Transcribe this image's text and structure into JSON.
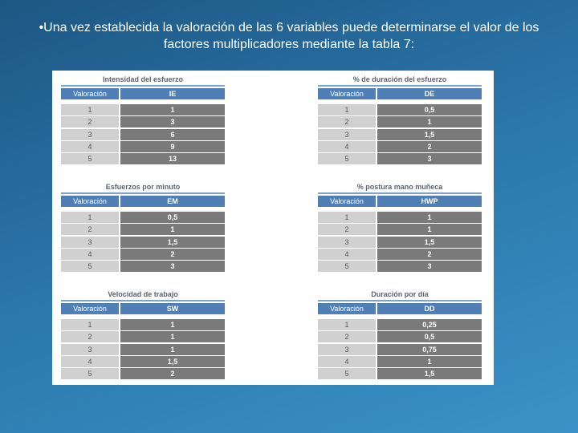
{
  "heading": "•Una vez establecida la valoración de las 6 variables puede determinarse el valor de los factores multiplicadores mediante la tabla 7:",
  "tables": [
    {
      "title": "Intensidad del esfuerzo",
      "headers": [
        "Valoración",
        "IE"
      ],
      "rows": [
        [
          "1",
          "1"
        ],
        [
          "2",
          "3"
        ],
        [
          "3",
          "6"
        ],
        [
          "4",
          "9"
        ],
        [
          "5",
          "13"
        ]
      ]
    },
    {
      "title": "% de duración del esfuerzo",
      "headers": [
        "Valoración",
        "DE"
      ],
      "rows": [
        [
          "1",
          "0,5"
        ],
        [
          "2",
          "1"
        ],
        [
          "3",
          "1,5"
        ],
        [
          "4",
          "2"
        ],
        [
          "5",
          "3"
        ]
      ]
    },
    {
      "title": "Esfuerzos por minuto",
      "headers": [
        "Valoración",
        "EM"
      ],
      "rows": [
        [
          "1",
          "0,5"
        ],
        [
          "2",
          "1"
        ],
        [
          "3",
          "1,5"
        ],
        [
          "4",
          "2"
        ],
        [
          "5",
          "3"
        ]
      ]
    },
    {
      "title": "% postura mano muñeca",
      "headers": [
        "Valoración",
        "HWP"
      ],
      "rows": [
        [
          "1",
          "1"
        ],
        [
          "2",
          "1"
        ],
        [
          "3",
          "1,5"
        ],
        [
          "4",
          "2"
        ],
        [
          "5",
          "3"
        ]
      ]
    },
    {
      "title": "Velocidad de trabajo",
      "headers": [
        "Valoración",
        "SW"
      ],
      "rows": [
        [
          "1",
          "1"
        ],
        [
          "2",
          "1"
        ],
        [
          "3",
          "1"
        ],
        [
          "4",
          "1,5"
        ],
        [
          "5",
          "2"
        ]
      ]
    },
    {
      "title": "Duración por día",
      "headers": [
        "Valoración",
        "DD"
      ],
      "rows": [
        [
          "1",
          "0,25"
        ],
        [
          "2",
          "0,5"
        ],
        [
          "3",
          "0,75"
        ],
        [
          "4",
          "1"
        ],
        [
          "5",
          "1,5"
        ]
      ]
    }
  ]
}
